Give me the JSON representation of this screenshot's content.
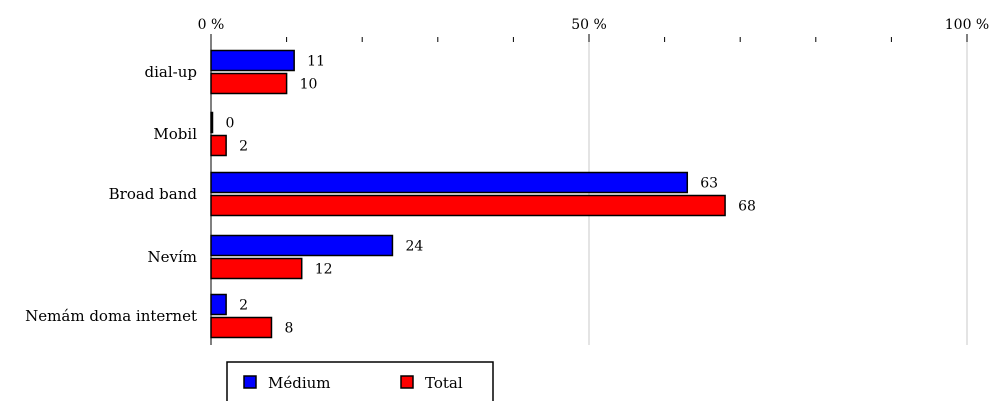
{
  "chart_data": {
    "type": "bar",
    "orientation": "horizontal",
    "categories": [
      "dial-up",
      "Mobil",
      "Broad band",
      "Nevím",
      "Nemám doma internet"
    ],
    "series": [
      {
        "name": "Médium",
        "values": [
          11,
          0,
          63,
          24,
          2
        ],
        "color": "#0000ff"
      },
      {
        "name": "Total",
        "values": [
          10,
          2,
          68,
          12,
          8
        ],
        "color": "#ff0000"
      }
    ],
    "xlim": [
      0,
      100
    ],
    "x_ticks": [
      "0 %",
      "50 %",
      "100 %"
    ],
    "x_tick_values": [
      0,
      50,
      100
    ],
    "x_axis_position": "top",
    "grid": true,
    "legend_position": "bottom-left"
  }
}
